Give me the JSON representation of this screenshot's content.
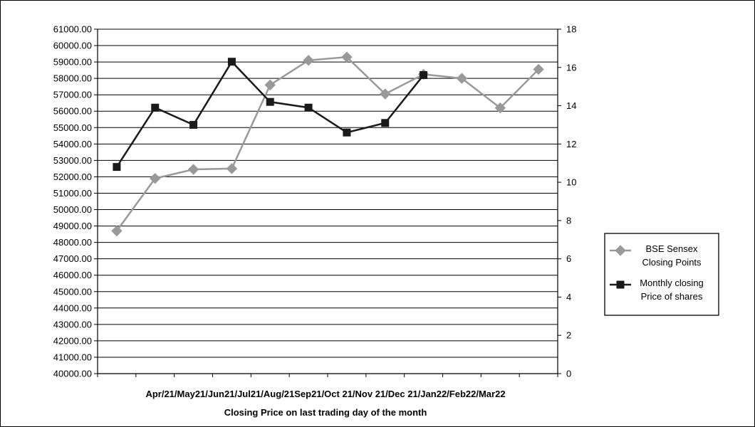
{
  "chart_data": {
    "type": "line",
    "categories": [
      "Apr/21",
      "May21",
      "Jun21",
      "Jul21",
      "Aug/21",
      "Sep21",
      "Oct 21",
      "Nov 21",
      "Dec 21",
      "Jan22",
      "Feb22",
      "Mar22"
    ],
    "category_axis_label": "Apr/21/May21/Jun21/Jul21/Aug/21Sep21/Oct 21/Nov 21/Dec 21/Jan22/Feb22/Mar22",
    "xlabel": "Closing Price on last trading day of the month",
    "y_left": {
      "ylim": [
        40000,
        61000
      ],
      "step": 1000,
      "decimals": 2
    },
    "y_right": {
      "ylim": [
        0,
        18
      ],
      "step": 2
    },
    "grid": "horizontal",
    "legend_position": "right",
    "series": [
      {
        "name": "BSE Sensex Closing Points",
        "legend_lines": [
          "BSE Sensex",
          "Closing Points"
        ],
        "axis": "left",
        "marker": "diamond",
        "color": "#999999",
        "values": [
          48700,
          51900,
          52450,
          52500,
          57600,
          59100,
          59300,
          57050,
          58250,
          58000,
          56200,
          58550
        ]
      },
      {
        "name": "Monthly closing Price of shares",
        "legend_lines": [
          "Monthly closing",
          "Price of shares"
        ],
        "axis": "right",
        "marker": "square",
        "color": "#1a1a1a",
        "values": [
          10.8,
          13.9,
          13.0,
          16.3,
          14.2,
          13.9,
          12.6,
          13.1,
          15.6,
          null,
          null,
          null
        ]
      }
    ]
  }
}
